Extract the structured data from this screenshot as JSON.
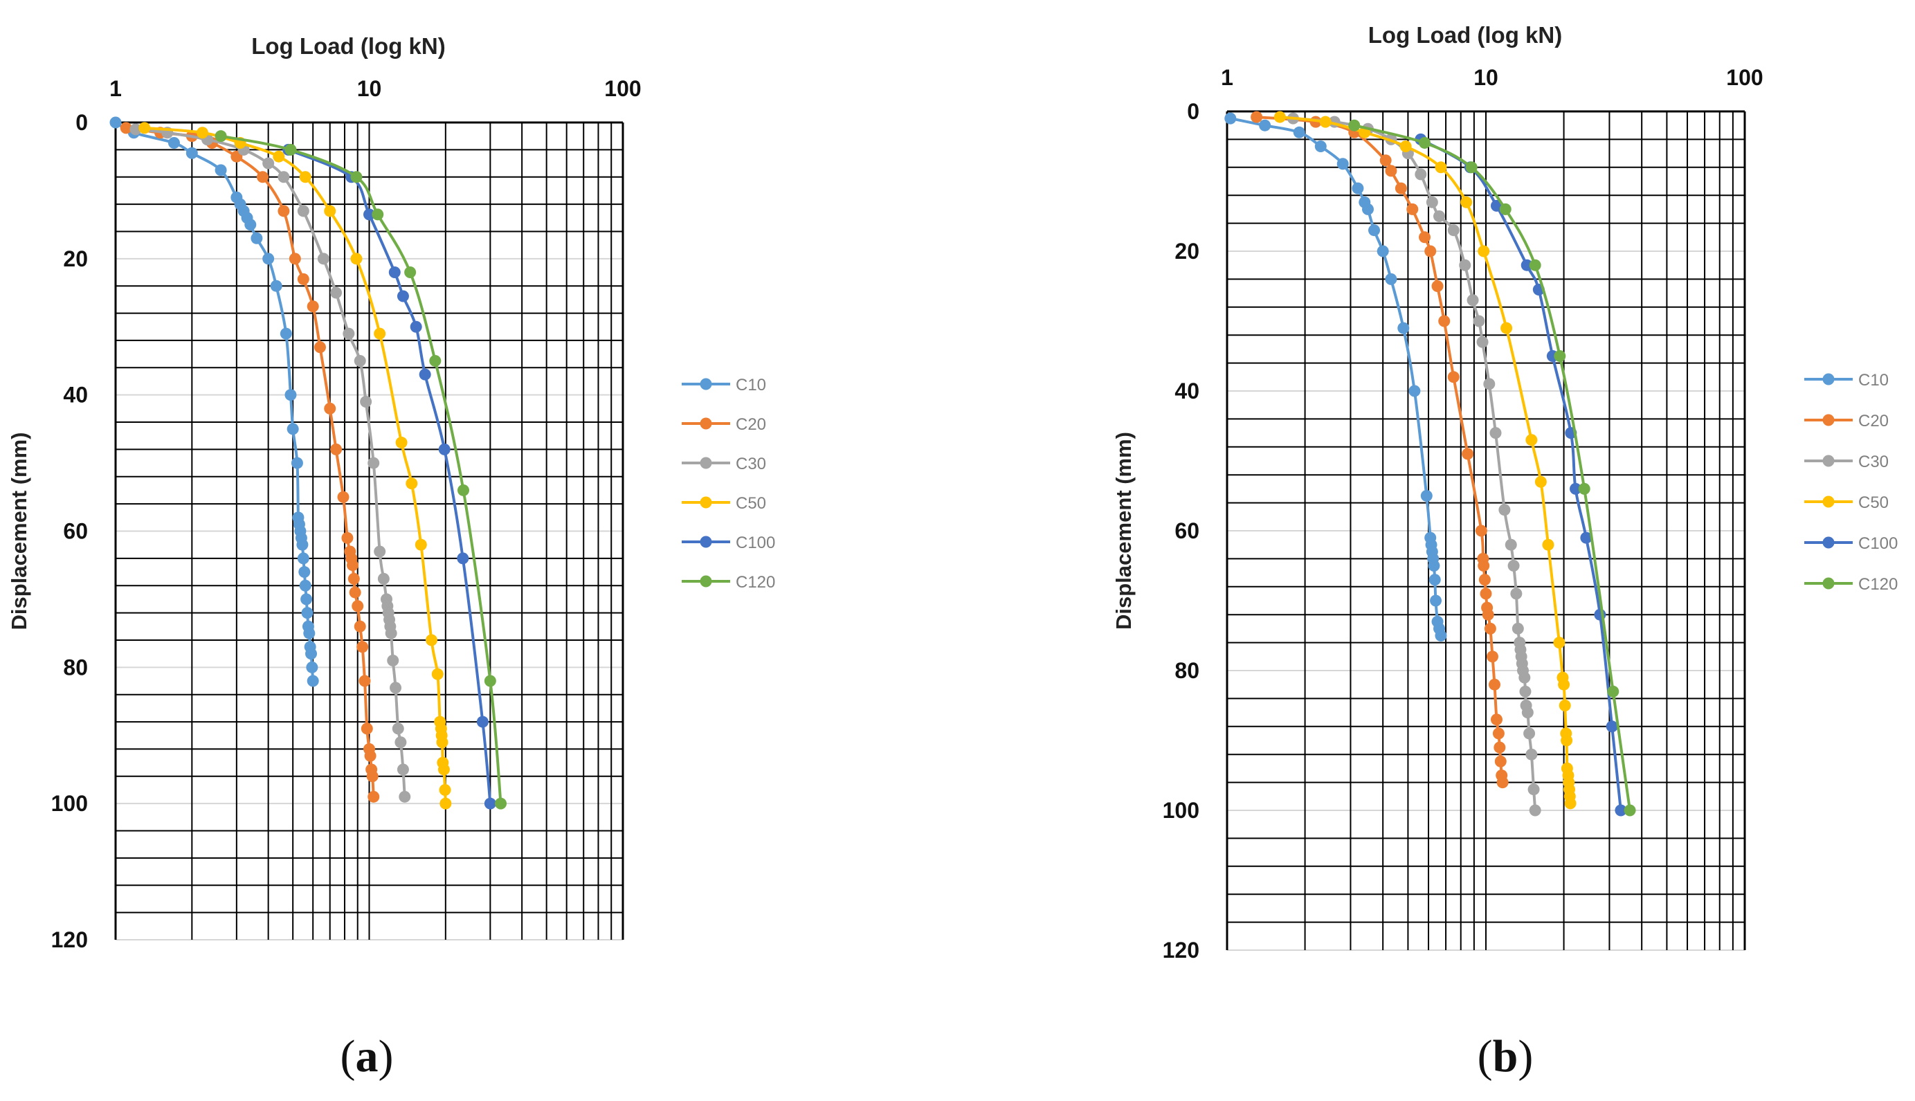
{
  "chart_data": [
    {
      "type": "line",
      "panel_label": "(a)",
      "xlabel": "Log Load (log kN)",
      "ylabel": "Displacement (mm)",
      "xscale": "log",
      "xlim": [
        1,
        100
      ],
      "ylim": [
        0,
        120
      ],
      "y_inverted": true,
      "x_axis_position": "top",
      "x_ticks": [
        "1",
        "10",
        "100"
      ],
      "y_ticks": [
        "0",
        "20",
        "40",
        "60",
        "80",
        "100",
        "120"
      ],
      "grid": true,
      "legend_position": "right",
      "series": [
        {
          "name": "C10",
          "color": "#5b9bd5",
          "x": [
            1.0,
            1.18,
            1.7,
            2.0,
            2.6,
            3.0,
            3.1,
            3.2,
            3.3,
            3.4,
            3.6,
            4.0,
            4.3,
            4.7,
            4.9,
            5.0,
            5.2,
            5.25,
            5.3,
            5.35,
            5.4,
            5.45,
            5.5,
            5.55,
            5.6,
            5.65,
            5.7,
            5.75,
            5.8,
            5.85,
            5.9,
            5.95,
            6.0
          ],
          "y": [
            0,
            1.5,
            3,
            4.5,
            7,
            11,
            12,
            13,
            14,
            15,
            17,
            20,
            24,
            31,
            40,
            45,
            50,
            58,
            59,
            60,
            61,
            62,
            64,
            66,
            68,
            70,
            72,
            74,
            75,
            77,
            78,
            80,
            82
          ]
        },
        {
          "name": "C20",
          "color": "#ed7d31",
          "x": [
            1.1,
            1.5,
            2.0,
            2.4,
            3.0,
            3.8,
            4.6,
            5.1,
            5.5,
            6.0,
            6.4,
            7.0,
            7.4,
            7.9,
            8.2,
            8.4,
            8.5,
            8.6,
            8.7,
            8.8,
            9.0,
            9.2,
            9.4,
            9.6,
            9.8,
            10.0,
            10.1,
            10.2,
            10.3,
            10.4
          ],
          "y": [
            0.8,
            1.5,
            2,
            3,
            5,
            8,
            13,
            20,
            23,
            27,
            33,
            42,
            48,
            55,
            61,
            63,
            64,
            65,
            67,
            69,
            71,
            74,
            77,
            82,
            89,
            92,
            93,
            95,
            96,
            99
          ]
        },
        {
          "name": "C30",
          "color": "#a5a5a5",
          "x": [
            1.2,
            1.6,
            2.3,
            3.2,
            4.0,
            4.6,
            5.5,
            6.6,
            7.4,
            8.3,
            9.2,
            9.7,
            10.4,
            11.0,
            11.4,
            11.7,
            11.8,
            11.9,
            12.0,
            12.1,
            12.2,
            12.4,
            12.7,
            13.0,
            13.3,
            13.6,
            13.8
          ],
          "y": [
            1,
            1.5,
            2.5,
            4,
            6,
            8,
            13,
            20,
            25,
            31,
            35,
            41,
            50,
            63,
            67,
            70,
            71,
            72,
            73,
            74,
            75,
            79,
            83,
            89,
            91,
            95,
            99
          ]
        },
        {
          "name": "C50",
          "color": "#ffc000",
          "x": [
            1.3,
            2.2,
            3.1,
            4.4,
            5.6,
            7.0,
            8.9,
            11.0,
            13.4,
            14.7,
            16.0,
            17.6,
            18.6,
            19.0,
            19.2,
            19.3,
            19.4,
            19.5,
            19.7,
            19.9,
            20.0
          ],
          "y": [
            0.8,
            1.5,
            3,
            5,
            8,
            13,
            20,
            31,
            47,
            53,
            62,
            76,
            81,
            88,
            89,
            90,
            91,
            94,
            95,
            98,
            100
          ]
        },
        {
          "name": "C100",
          "color": "#4472c4",
          "x": [
            4.8,
            8.5,
            10.0,
            12.6,
            13.6,
            15.3,
            16.6,
            19.8,
            23.4,
            28.0,
            30.0
          ],
          "y": [
            4,
            8,
            13.5,
            22,
            25.5,
            30,
            37,
            48,
            64,
            88,
            100
          ]
        },
        {
          "name": "C120",
          "color": "#70ad47",
          "x": [
            2.6,
            4.9,
            8.9,
            10.8,
            14.5,
            18.2,
            23.5,
            30.0,
            33.0
          ],
          "y": [
            2,
            4,
            8,
            13.5,
            22,
            35,
            54,
            82,
            100
          ]
        }
      ]
    },
    {
      "type": "line",
      "panel_label": "(b)",
      "xlabel": "Log Load (log kN)",
      "ylabel": "Displacement (mm)",
      "xscale": "log",
      "xlim": [
        1,
        100
      ],
      "ylim": [
        0,
        120
      ],
      "y_inverted": true,
      "x_axis_position": "top",
      "x_ticks": [
        "1",
        "10",
        "100"
      ],
      "y_ticks": [
        "0",
        "20",
        "40",
        "60",
        "80",
        "100",
        "120"
      ],
      "grid": true,
      "legend_position": "right",
      "series": [
        {
          "name": "C10",
          "color": "#5b9bd5",
          "x": [
            1.03,
            1.4,
            1.9,
            2.3,
            2.8,
            3.2,
            3.4,
            3.5,
            3.7,
            4.0,
            4.3,
            4.8,
            5.3,
            5.9,
            6.1,
            6.15,
            6.2,
            6.25,
            6.3,
            6.35,
            6.4,
            6.5,
            6.6,
            6.7
          ],
          "y": [
            1,
            2,
            3,
            5,
            7.5,
            11,
            13,
            14,
            17,
            20,
            24,
            31,
            40,
            55,
            61,
            62,
            63,
            64,
            65,
            67,
            70,
            73,
            74,
            75
          ]
        },
        {
          "name": "C20",
          "color": "#ed7d31",
          "x": [
            1.3,
            2.2,
            3.1,
            4.1,
            4.3,
            4.7,
            5.2,
            5.8,
            6.1,
            6.5,
            6.9,
            7.5,
            8.5,
            9.6,
            9.75,
            9.8,
            9.9,
            10.0,
            10.1,
            10.2,
            10.4,
            10.6,
            10.8,
            11.0,
            11.2,
            11.3,
            11.4,
            11.5,
            11.6
          ],
          "y": [
            0.8,
            1.5,
            3,
            7,
            8.5,
            11,
            14,
            18,
            20,
            25,
            30,
            38,
            49,
            60,
            64,
            65,
            67,
            69,
            71,
            72,
            74,
            78,
            82,
            87,
            89,
            91,
            93,
            95,
            96
          ]
        },
        {
          "name": "C30",
          "color": "#a5a5a5",
          "x": [
            1.8,
            2.6,
            3.5,
            4.3,
            5.0,
            5.6,
            6.2,
            6.6,
            7.5,
            8.3,
            8.9,
            9.4,
            9.7,
            10.3,
            10.9,
            11.8,
            12.5,
            12.8,
            13.1,
            13.3,
            13.5,
            13.6,
            13.7,
            13.8,
            13.9,
            14.1,
            14.2,
            14.3,
            14.5,
            14.7,
            15.0,
            15.3,
            15.5
          ],
          "y": [
            1,
            1.5,
            2.5,
            4,
            6,
            9,
            13,
            15,
            17,
            22,
            27,
            30,
            33,
            39,
            46,
            57,
            62,
            65,
            69,
            74,
            76,
            77,
            78,
            79,
            80,
            81,
            83,
            85,
            86,
            89,
            92,
            97,
            100
          ]
        },
        {
          "name": "C50",
          "color": "#ffc000",
          "x": [
            1.6,
            2.4,
            3.4,
            4.9,
            6.7,
            8.4,
            9.8,
            12.0,
            15.0,
            16.3,
            17.4,
            19.2,
            19.8,
            20.0,
            20.2,
            20.4,
            20.5,
            20.6,
            20.8,
            20.9,
            21.0,
            21.1,
            21.2
          ],
          "y": [
            0.8,
            1.5,
            3,
            5,
            8,
            13,
            20,
            31,
            47,
            53,
            62,
            76,
            81,
            82,
            85,
            89,
            90,
            94,
            95,
            96,
            97,
            98,
            99
          ]
        },
        {
          "name": "C100",
          "color": "#4472c4",
          "x": [
            5.6,
            8.7,
            11.0,
            14.4,
            16.0,
            18.1,
            21.3,
            22.2,
            24.4,
            27.6,
            30.7,
            33.2
          ],
          "y": [
            4,
            8,
            13.5,
            22,
            25.5,
            35,
            46,
            54,
            61,
            72,
            88,
            100
          ]
        },
        {
          "name": "C120",
          "color": "#70ad47",
          "x": [
            3.1,
            5.8,
            8.8,
            11.9,
            15.5,
            19.3,
            24.0,
            31.0,
            36.0
          ],
          "y": [
            2,
            4.5,
            8,
            14,
            22,
            35,
            54,
            83,
            100
          ]
        }
      ]
    }
  ]
}
